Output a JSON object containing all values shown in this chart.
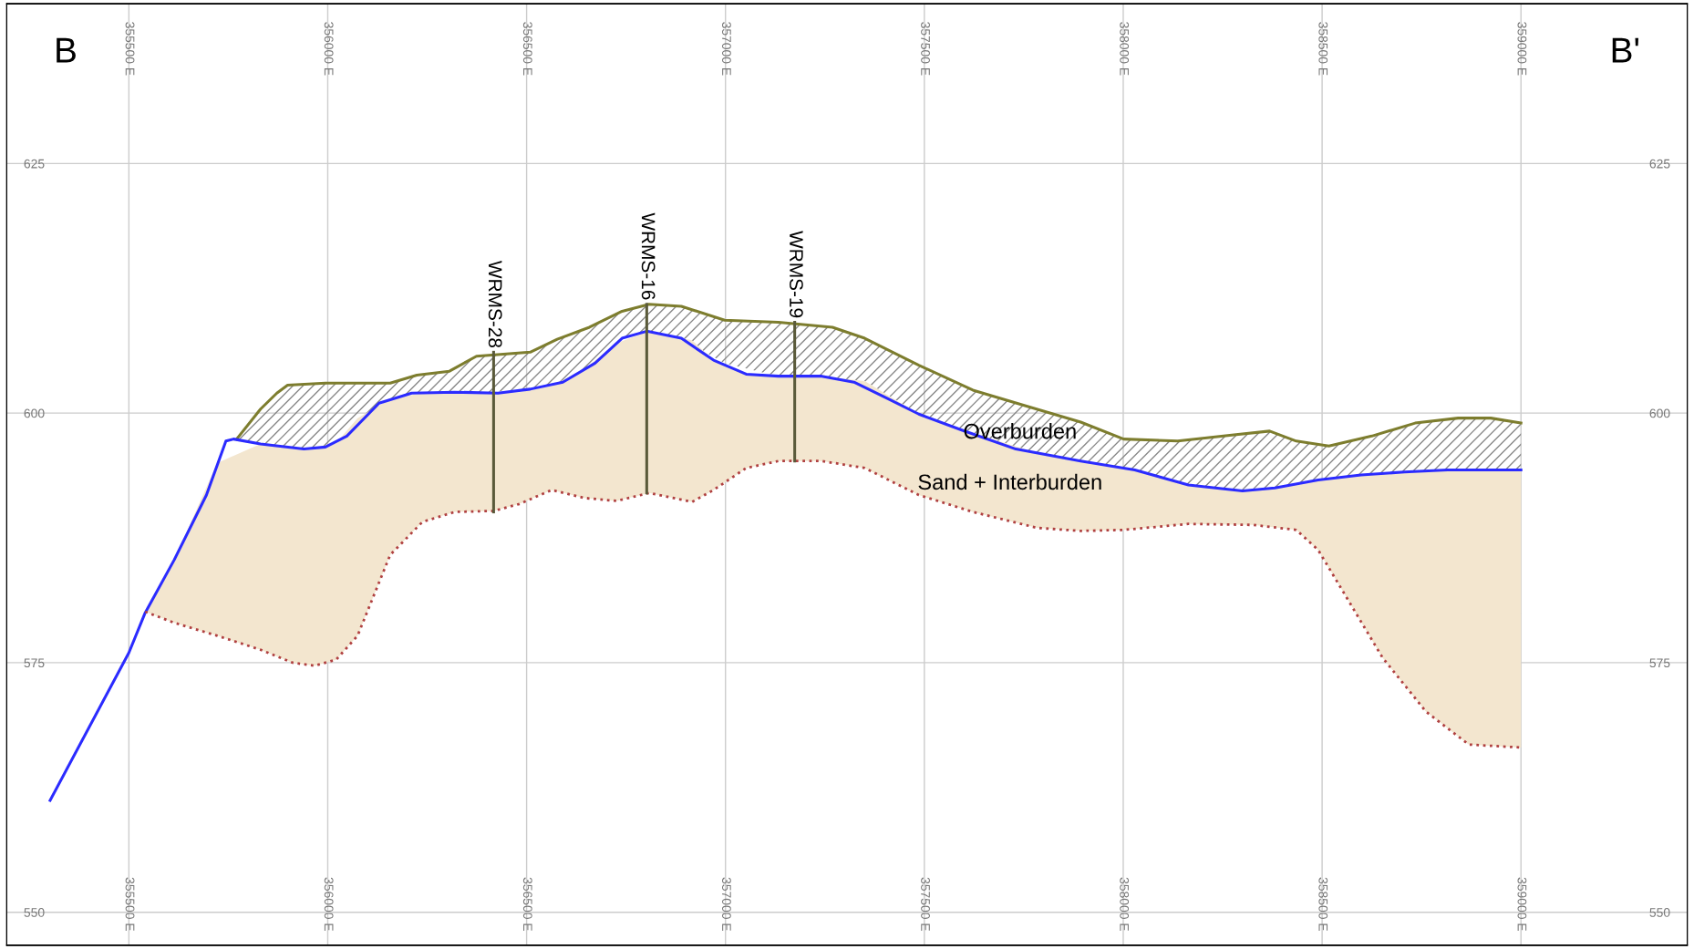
{
  "chart_data": {
    "type": "line",
    "annotations": [
      "B",
      "B'",
      "Overburden",
      "Sand + Interburden"
    ],
    "xlim": [
      355193,
      359418
    ],
    "ylim": [
      546.7,
      641
    ],
    "xticks": [
      {
        "value": 355500,
        "label": "355500 E"
      },
      {
        "value": 356000,
        "label": "356000 E"
      },
      {
        "value": 356500,
        "label": "356500 E"
      },
      {
        "value": 357000,
        "label": "357000 E"
      },
      {
        "value": 357500,
        "label": "357500 E"
      },
      {
        "value": 358000,
        "label": "358000 E"
      },
      {
        "value": 358500,
        "label": "358500 E"
      },
      {
        "value": 359000,
        "label": "359000 E"
      }
    ],
    "x2lim": [
      355193,
      359418
    ],
    "x2ticks": [
      {
        "value": 355500,
        "label": "355500 E"
      },
      {
        "value": 356000,
        "label": "356000 E"
      },
      {
        "value": 356500,
        "label": "356500 E"
      },
      {
        "value": 357000,
        "label": "357000 E"
      },
      {
        "value": 357500,
        "label": "357500 E"
      },
      {
        "value": 358000,
        "label": "358000 E"
      },
      {
        "value": 358500,
        "label": "358500 E"
      },
      {
        "value": 359000,
        "label": "359000 E"
      }
    ],
    "yticks": [
      550,
      575,
      600,
      625
    ],
    "y2lim": [
      546.7,
      641
    ],
    "y2ticks": [
      550,
      575,
      600,
      625
    ],
    "grid": true,
    "legend": false,
    "marker": "none",
    "series": [
      {
        "color": "#7d7d2e",
        "line_style": "solid",
        "x": [
          355771,
          355831,
          355872,
          355899,
          355994,
          356157,
          356224,
          356306,
          356374,
          356509,
          356577,
          356658,
          356740,
          356808,
          356889,
          356998,
          357133,
          357269,
          357350,
          357486,
          357622,
          357757,
          357893,
          358001,
          358137,
          358273,
          358368,
          358435,
          358517,
          358625,
          358734,
          358842,
          358924,
          359000
        ],
        "values": [
          597.4,
          600.4,
          602,
          602.8,
          603,
          603,
          603.8,
          604.2,
          605.7,
          606.1,
          607.4,
          608.6,
          610.2,
          610.9,
          610.7,
          609.3,
          609.1,
          608.6,
          607.5,
          604.8,
          602.3,
          600.7,
          599.1,
          597.4,
          597.2,
          597.8,
          598.2,
          597.2,
          596.7,
          597.7,
          599,
          599.5,
          599.5,
          599
        ],
        "lower": [
          597.3,
          596.9,
          596.6,
          596.5,
          596.6,
          601.4,
          602,
          602.1,
          602,
          602.4,
          602.9,
          604.6,
          607.5,
          608.2,
          607.5,
          605,
          603.7,
          603.5,
          603.2,
          599.9,
          598,
          596.2,
          595.2,
          594.5,
          593,
          592.3,
          592.4,
          592.9,
          593.4,
          593.9,
          594.1,
          594.3,
          594.3,
          594.3
        ],
        "upper": [
          597.4,
          600.4,
          602,
          602.8,
          603,
          603,
          603.8,
          604.2,
          605.7,
          606.1,
          607.4,
          608.6,
          610.2,
          610.9,
          610.7,
          609.3,
          609.1,
          608.6,
          607.5,
          604.8,
          602.3,
          600.7,
          599.1,
          597.4,
          597.2,
          597.8,
          598.2,
          597.2,
          596.7,
          597.7,
          599,
          599.5,
          599.5,
          599
        ]
      },
      {
        "color": "#2b2bff",
        "line_style": "solid",
        "x": [
          355302,
          355500,
          355541,
          355614,
          355695,
          355744,
          355763,
          355831,
          355940,
          355994,
          356048,
          356129,
          356211,
          356319,
          356428,
          356509,
          356591,
          356672,
          356740,
          356802,
          356889,
          356970,
          357052,
          357133,
          357242,
          357323,
          357405,
          357486,
          357594,
          357730,
          357893,
          358029,
          358164,
          358300,
          358381,
          358490,
          358598,
          358707,
          358815,
          359000
        ],
        "values": [
          561.2,
          576,
          580,
          585.3,
          591.8,
          597.2,
          597.4,
          596.9,
          596.4,
          596.6,
          597.7,
          601,
          602,
          602.1,
          602,
          602.4,
          603.1,
          605,
          607.5,
          608.2,
          607.5,
          605.3,
          603.9,
          603.7,
          603.7,
          603.1,
          601.5,
          599.9,
          598.3,
          596.4,
          595.2,
          594.3,
          592.8,
          592.2,
          592.5,
          593.3,
          593.8,
          594.1,
          594.3,
          594.3
        ]
      },
      {
        "color": "#b04040",
        "line_style": "dotted",
        "x": [
          355541,
          355614,
          355722,
          355831,
          355912,
          355967,
          356021,
          356075,
          356157,
          356238,
          356319,
          356417,
          356482,
          356563,
          356645,
          356726,
          356808,
          356916,
          356970,
          357052,
          357133,
          357242,
          357350,
          357486,
          357622,
          357784,
          357893,
          358001,
          358164,
          358327,
          358435,
          358490,
          358571,
          358652,
          358761,
          358869,
          359000
        ],
        "values": [
          580.1,
          579,
          577.7,
          576.3,
          575,
          574.7,
          575.3,
          577.7,
          585.8,
          589.1,
          590.1,
          590.2,
          590.9,
          592.3,
          591.5,
          591.2,
          592,
          591.1,
          592.3,
          594.5,
          595.2,
          595.2,
          594.5,
          591.8,
          590.1,
          588.5,
          588.2,
          588.3,
          588.9,
          588.8,
          588.3,
          586.3,
          580.9,
          575.5,
          570.1,
          566.8,
          566.5
        ],
        "lower": [
          580.1,
          579,
          577.7,
          576.3,
          575,
          574.7,
          575.3,
          577.7,
          585.8,
          589.1,
          590.1,
          590.2,
          590.9,
          592.3,
          591.5,
          591.2,
          592,
          591.1,
          592.3,
          594.5,
          595.2,
          595.2,
          594.5,
          591.8,
          590.1,
          588.5,
          588.2,
          588.3,
          588.9,
          588.8,
          588.3,
          586.3,
          580.9,
          575.5,
          570.1,
          566.8,
          566.5
        ],
        "upper": [
          580,
          585.3,
          595,
          596.9,
          596.4,
          596.4,
          597,
          599.5,
          601.4,
          602,
          602.1,
          602,
          602.1,
          602.7,
          604.4,
          607,
          608.2,
          607.3,
          605.3,
          603.9,
          603.7,
          603.7,
          603.2,
          599.9,
          598,
          596,
          595.2,
          594.5,
          592.8,
          592.2,
          592.9,
          593.3,
          593.7,
          593.9,
          594.2,
          594.3,
          594.3
        ]
      },
      {
        "name": "WRMS-28",
        "color": "#5a5a3a",
        "line_style": "solid",
        "x": [
          356417,
          356417
        ],
        "values": [
          606.1,
          590.1
        ]
      },
      {
        "name": "WRMS-16",
        "color": "#5a5a3a",
        "line_style": "solid",
        "x": [
          356802,
          356802
        ],
        "values": [
          610.9,
          592
        ]
      },
      {
        "name": "WRMS-19",
        "color": "#5a5a3a",
        "line_style": "solid",
        "x": [
          357174,
          357174
        ],
        "values": [
          609.1,
          595.2
        ]
      }
    ]
  }
}
